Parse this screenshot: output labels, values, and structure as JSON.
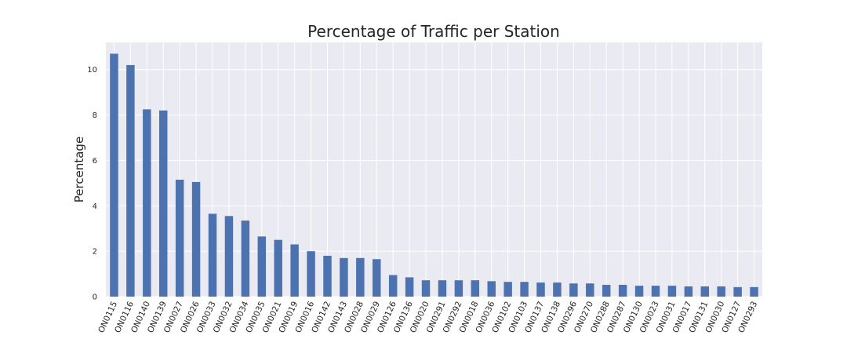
{
  "chart_data": {
    "type": "bar",
    "title": "Percentage of Traffic per Station",
    "xlabel": "",
    "ylabel": "Percentage",
    "ylim": [
      0,
      11.2
    ],
    "yticks": [
      0,
      2,
      4,
      6,
      8,
      10
    ],
    "grid": true,
    "categories": [
      "ON0115",
      "ON0116",
      "ON0140",
      "ON0139",
      "ON0027",
      "ON0026",
      "ON0033",
      "ON0032",
      "ON0034",
      "ON0035",
      "ON0021",
      "ON0019",
      "ON0016",
      "ON0142",
      "ON0143",
      "ON0028",
      "ON0029",
      "ON0126",
      "ON0136",
      "ON0020",
      "ON0291",
      "ON0292",
      "ON0018",
      "ON0036",
      "ON0102",
      "ON0103",
      "ON0137",
      "ON0138",
      "ON0296",
      "ON0270",
      "ON0288",
      "ON0287",
      "ON0130",
      "ON0023",
      "ON0031",
      "ON0017",
      "ON0131",
      "ON0030",
      "ON0127",
      "ON0293"
    ],
    "values": [
      10.7,
      10.2,
      8.25,
      8.2,
      5.15,
      5.05,
      3.65,
      3.55,
      3.35,
      2.65,
      2.5,
      2.3,
      2.0,
      1.8,
      1.7,
      1.7,
      1.65,
      0.95,
      0.85,
      0.72,
      0.72,
      0.72,
      0.72,
      0.68,
      0.65,
      0.65,
      0.62,
      0.62,
      0.58,
      0.58,
      0.52,
      0.52,
      0.48,
      0.48,
      0.48,
      0.45,
      0.45,
      0.45,
      0.42,
      0.42
    ],
    "colors": {
      "bar": "#4c72b0",
      "plot_bg": "#eaeaf2",
      "grid": "#ffffff"
    }
  }
}
